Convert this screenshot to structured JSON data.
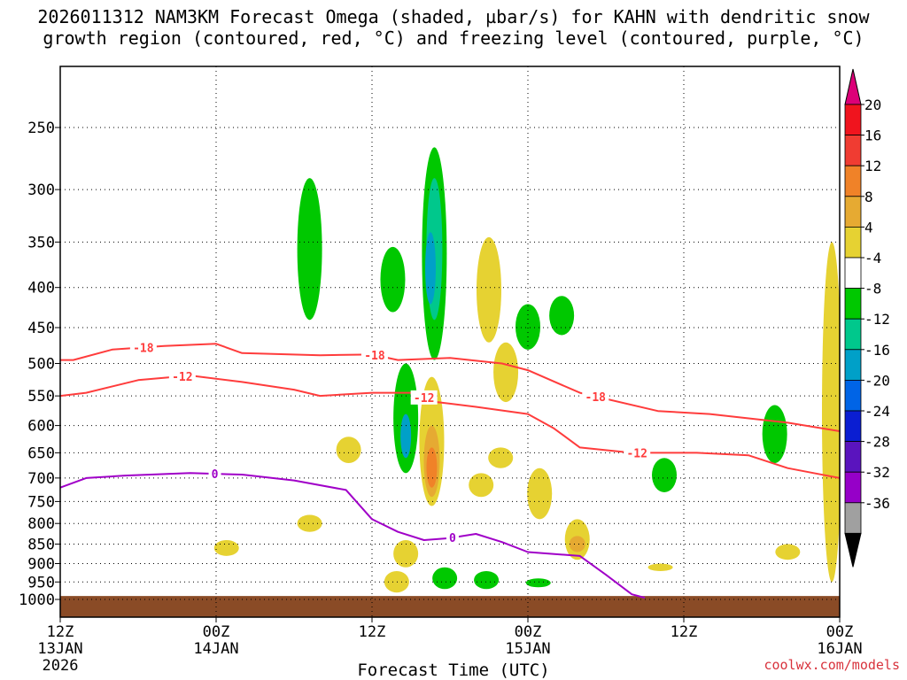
{
  "title": {
    "line1": "2026011312 NAM3KM Forecast Omega (shaded, µbar/s) for KAHN with dendritic snow",
    "line2": "growth region (contoured, red, °C) and freezing level (contoured, purple, °C)"
  },
  "watermark": "coolwx.com/models",
  "chart_data": {
    "type": "time-height cross section",
    "xlabel": "Forecast Time (UTC)",
    "ylabel": "",
    "x_ticks": [
      {
        "hour": 0,
        "line1": "12Z",
        "line2": "13JAN",
        "line3": "2026"
      },
      {
        "hour": 12,
        "line1": "00Z",
        "line2": "14JAN",
        "line3": ""
      },
      {
        "hour": 24,
        "line1": "12Z",
        "line2": "",
        "line3": ""
      },
      {
        "hour": 36,
        "line1": "00Z",
        "line2": "15JAN",
        "line3": ""
      },
      {
        "hour": 48,
        "line1": "12Z",
        "line2": "",
        "line3": ""
      },
      {
        "hour": 60,
        "line1": "00Z",
        "line2": "16JAN",
        "line3": ""
      }
    ],
    "xlim_hours": [
      0,
      60
    ],
    "y_axis": "pressure (hPa), log scale, inverted",
    "ylim_hpa": [
      1030,
      200
    ],
    "y_ticks": [
      250,
      300,
      350,
      400,
      450,
      500,
      550,
      600,
      650,
      700,
      750,
      800,
      850,
      900,
      950,
      1000
    ],
    "colorbar": {
      "units": "µbar/s",
      "labels": [
        20,
        16,
        12,
        8,
        4,
        -4,
        -8,
        -12,
        -16,
        -20,
        -24,
        -28,
        -32,
        -36
      ],
      "colors": [
        "#f0141e",
        "#f03c32",
        "#f08228",
        "#e6aa32",
        "#e6d232",
        "#ffffff",
        "#00c800",
        "#00c88c",
        "#00a0c8",
        "#0064e6",
        "#0a1ed2",
        "#5a14be",
        "#9600c8",
        "#a0a0a0",
        "#000000"
      ],
      "top_color": "#dc0078"
    },
    "omega_regions": [
      {
        "time_h": 19.2,
        "center_hpa": 360,
        "range_hpa": [
          290,
          440
        ],
        "value_class": -6
      },
      {
        "time_h": 25.6,
        "center_hpa": 390,
        "range_hpa": [
          355,
          430
        ],
        "value_class": -6
      },
      {
        "time_h": 28.8,
        "center_hpa": 380,
        "range_hpa": [
          265,
          495
        ],
        "value_class": -6
      },
      {
        "time_h": 28.8,
        "center_hpa": 360,
        "range_hpa": [
          290,
          440
        ],
        "value_class": -10
      },
      {
        "time_h": 28.5,
        "center_hpa": 380,
        "range_hpa": [
          340,
          420
        ],
        "value_class": -14
      },
      {
        "time_h": 26.6,
        "center_hpa": 600,
        "range_hpa": [
          500,
          690
        ],
        "value_class": -6
      },
      {
        "time_h": 26.6,
        "center_hpa": 610,
        "range_hpa": [
          580,
          660
        ],
        "value_class": -12
      },
      {
        "time_h": 28.6,
        "center_hpa": 640,
        "range_hpa": [
          520,
          760
        ],
        "value_class": 6
      },
      {
        "time_h": 28.6,
        "center_hpa": 660,
        "range_hpa": [
          600,
          740
        ],
        "value_class": 10
      },
      {
        "time_h": 28.6,
        "center_hpa": 670,
        "range_hpa": [
          640,
          720
        ],
        "value_class": 14
      },
      {
        "time_h": 33.0,
        "center_hpa": 400,
        "range_hpa": [
          345,
          470
        ],
        "value_class": 6
      },
      {
        "time_h": 34.3,
        "center_hpa": 500,
        "range_hpa": [
          470,
          560
        ],
        "value_class": 6
      },
      {
        "time_h": 36.0,
        "center_hpa": 445,
        "range_hpa": [
          420,
          480
        ],
        "value_class": -6
      },
      {
        "time_h": 38.6,
        "center_hpa": 430,
        "range_hpa": [
          410,
          460
        ],
        "value_class": -6
      },
      {
        "time_h": 22.2,
        "center_hpa": 640,
        "range_hpa": [
          620,
          670
        ],
        "value_class": 6
      },
      {
        "time_h": 19.2,
        "center_hpa": 800,
        "range_hpa": [
          780,
          820
        ],
        "value_class": 6
      },
      {
        "time_h": 12.8,
        "center_hpa": 860,
        "range_hpa": [
          840,
          880
        ],
        "value_class": 6
      },
      {
        "time_h": 33.9,
        "center_hpa": 660,
        "range_hpa": [
          640,
          680
        ],
        "value_class": 6
      },
      {
        "time_h": 36.9,
        "center_hpa": 730,
        "range_hpa": [
          680,
          790
        ],
        "value_class": 6
      },
      {
        "time_h": 32.4,
        "center_hpa": 710,
        "range_hpa": [
          690,
          740
        ],
        "value_class": 6
      },
      {
        "time_h": 39.8,
        "center_hpa": 840,
        "range_hpa": [
          790,
          890
        ],
        "value_class": 6
      },
      {
        "time_h": 39.8,
        "center_hpa": 850,
        "range_hpa": [
          830,
          870
        ],
        "value_class": 10
      },
      {
        "time_h": 26.6,
        "center_hpa": 870,
        "range_hpa": [
          840,
          910
        ],
        "value_class": 6
      },
      {
        "time_h": 29.6,
        "center_hpa": 940,
        "range_hpa": [
          910,
          970
        ],
        "value_class": -6
      },
      {
        "time_h": 32.8,
        "center_hpa": 950,
        "range_hpa": [
          920,
          970
        ],
        "value_class": -6
      },
      {
        "time_h": 36.8,
        "center_hpa": 950,
        "range_hpa": [
          940,
          965
        ],
        "value_class": -6
      },
      {
        "time_h": 46.2,
        "center_hpa": 910,
        "range_hpa": [
          900,
          920
        ],
        "value_class": 6
      },
      {
        "time_h": 46.5,
        "center_hpa": 690,
        "range_hpa": [
          660,
          730
        ],
        "value_class": -6
      },
      {
        "time_h": 55.0,
        "center_hpa": 610,
        "range_hpa": [
          565,
          670
        ],
        "value_class": -6
      },
      {
        "time_h": 56.0,
        "center_hpa": 870,
        "range_hpa": [
          850,
          890
        ],
        "value_class": 6
      },
      {
        "time_h": 59.4,
        "center_hpa": 480,
        "range_hpa": [
          350,
          950
        ],
        "value_class": 6
      },
      {
        "time_h": 25.9,
        "center_hpa": 950,
        "range_hpa": [
          920,
          980
        ],
        "value_class": 6
      }
    ],
    "contours": [
      {
        "name": "-18C isotherm",
        "color": "#ff3c3c",
        "label": "-18",
        "label_positions_h": [
          6.4,
          24.2,
          41.2
        ],
        "points": [
          [
            0,
            495
          ],
          [
            1,
            495
          ],
          [
            4,
            480
          ],
          [
            8,
            475
          ],
          [
            12,
            472
          ],
          [
            14,
            485
          ],
          [
            20,
            488
          ],
          [
            24,
            487
          ],
          [
            26,
            495
          ],
          [
            30,
            492
          ],
          [
            34,
            500
          ],
          [
            36,
            510
          ],
          [
            40,
            545
          ],
          [
            46,
            575
          ],
          [
            50,
            580
          ],
          [
            56,
            595
          ],
          [
            60,
            610
          ]
        ]
      },
      {
        "name": "-12C isotherm",
        "color": "#ff3c3c",
        "label": "-12",
        "label_positions_h": [
          9.4,
          28.0,
          44.4
        ],
        "points": [
          [
            0,
            550
          ],
          [
            2,
            545
          ],
          [
            6,
            525
          ],
          [
            10,
            518
          ],
          [
            14,
            528
          ],
          [
            18,
            540
          ],
          [
            20,
            550
          ],
          [
            24,
            545
          ],
          [
            27,
            545
          ],
          [
            29,
            560
          ],
          [
            32,
            568
          ],
          [
            36,
            580
          ],
          [
            38,
            605
          ],
          [
            40,
            640
          ],
          [
            44,
            650
          ],
          [
            49,
            650
          ],
          [
            53,
            655
          ],
          [
            56,
            680
          ],
          [
            58,
            690
          ],
          [
            60,
            700
          ]
        ]
      },
      {
        "name": "0C freezing level",
        "color": "#a000c8",
        "label": "0",
        "label_positions_h": [
          11.9,
          30.2
        ],
        "points": [
          [
            0,
            720
          ],
          [
            2,
            700
          ],
          [
            5,
            695
          ],
          [
            10,
            690
          ],
          [
            14,
            693
          ],
          [
            18,
            705
          ],
          [
            22,
            725
          ],
          [
            24,
            790
          ],
          [
            26,
            820
          ],
          [
            28,
            840
          ],
          [
            30,
            835
          ],
          [
            32,
            825
          ],
          [
            34,
            845
          ],
          [
            36,
            870
          ],
          [
            40,
            880
          ],
          [
            42,
            930
          ],
          [
            44,
            985
          ],
          [
            45,
            995
          ]
        ]
      }
    ],
    "terrain": {
      "color": "#8a4b26",
      "surface_pressure_hpa": 990
    }
  }
}
